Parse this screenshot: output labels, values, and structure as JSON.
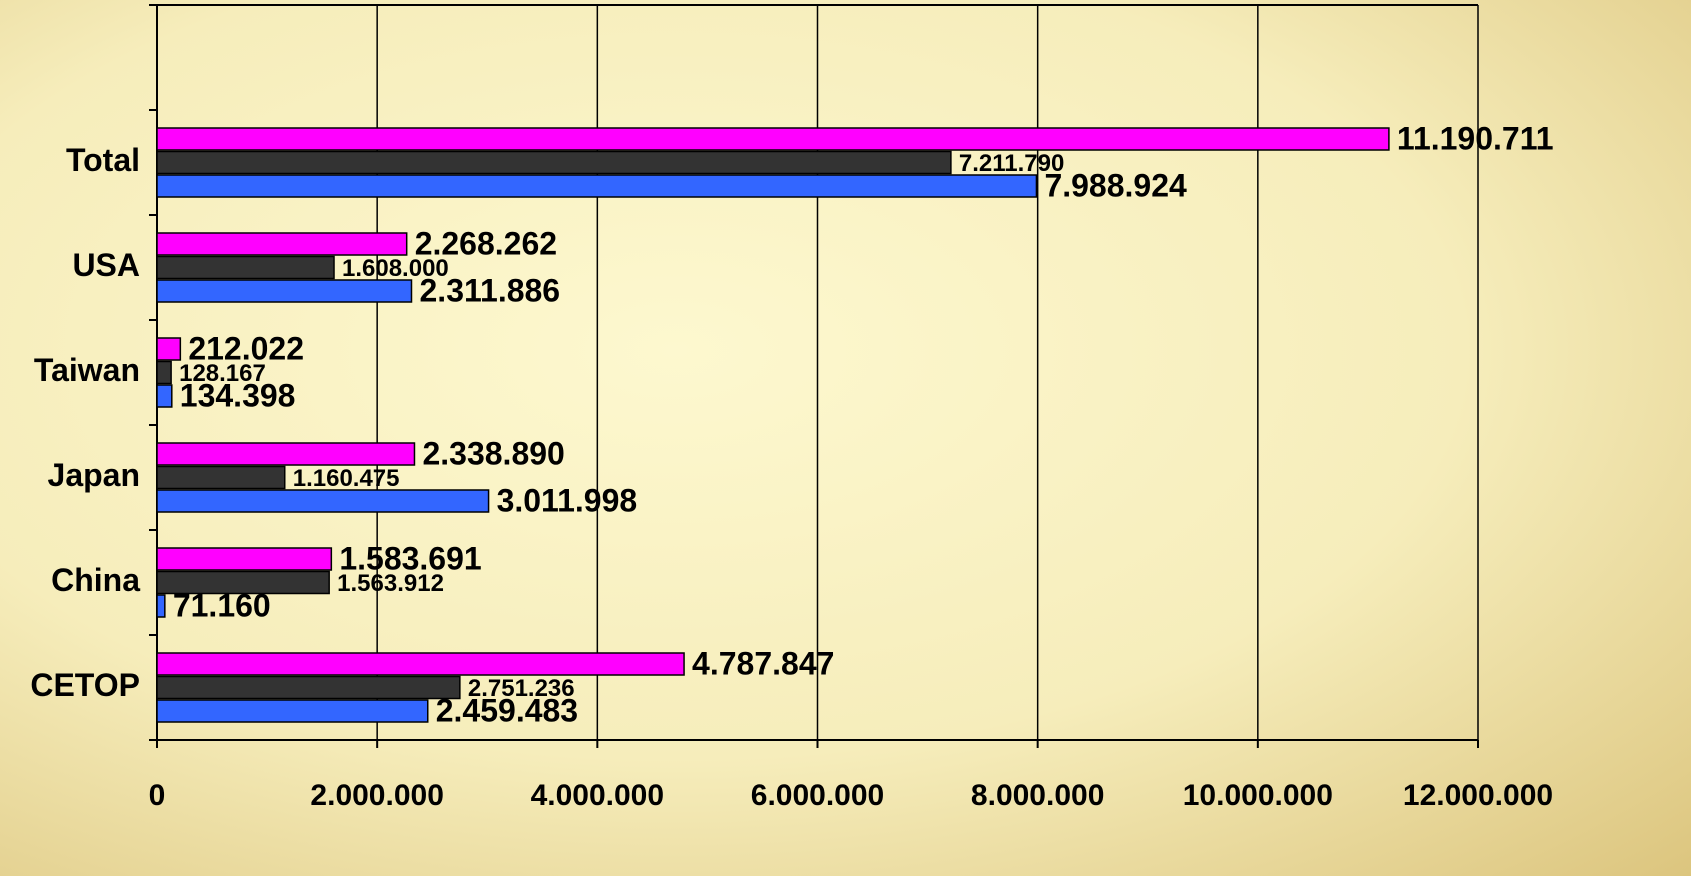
{
  "chart_data": {
    "type": "bar",
    "orientation": "horizontal",
    "categories": [
      "CETOP",
      "China",
      "Japan",
      "Taiwan",
      "USA",
      "Total",
      null
    ],
    "series": [
      {
        "color": "#ff00ff",
        "values": [
          4787847,
          1583691,
          2338890,
          212022,
          2268262,
          11190711,
          null
        ],
        "value_labels": [
          "4.787.847",
          "1.583.691",
          "2.338.890",
          "212.022",
          "2.268.262",
          "11.190.711",
          null
        ]
      },
      {
        "color": "#333333",
        "values": [
          2751236,
          1563912,
          1160475,
          128167,
          1608000,
          7211790,
          null
        ],
        "value_labels": [
          "2.751.236",
          "1.563.912",
          "1.160.475",
          "128.167",
          "1.608.000",
          "7.211.790",
          null
        ]
      },
      {
        "color": "#3366ff",
        "values": [
          2459483,
          71160,
          3011998,
          134398,
          2311886,
          7988924,
          null
        ],
        "value_labels": [
          "2.459.483",
          "71.160",
          "3.011.998",
          "134.398",
          "2.311.886",
          "7.988.924",
          null
        ]
      }
    ],
    "xlim": [
      0,
      12000000
    ],
    "xticks": [
      0,
      {
        "value": 2000000,
        "label": "2.000.000"
      },
      {
        "value": 4000000,
        "label": "4.000.000"
      },
      {
        "value": 6000000,
        "label": "6.000.000"
      },
      {
        "value": 8000000,
        "label": "8.000.000"
      },
      {
        "value": 10000000,
        "label": "10.000.000"
      },
      {
        "value": 12000000,
        "label": "12.000.000"
      }
    ],
    "grid": true
  }
}
